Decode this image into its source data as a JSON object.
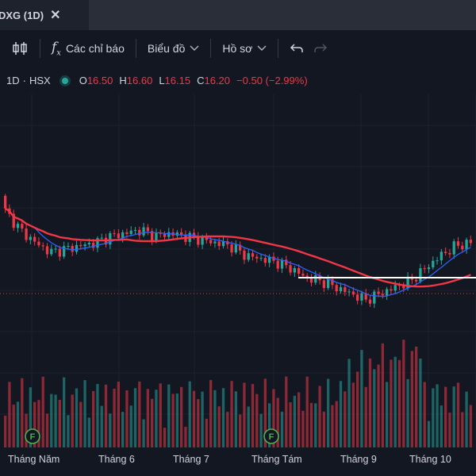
{
  "window": {
    "tab_title": "DXG (1D)",
    "close_glyph": "✕"
  },
  "toolbar": {
    "indicators_label": "Các chỉ báo",
    "chart_type_label": "Biểu đồ",
    "profile_label": "Hồ sơ",
    "fx_glyph": "f",
    "fx_sub": "x"
  },
  "legend": {
    "interval": "1D",
    "sep": "·",
    "exchange": "HSX",
    "o_label": "O",
    "o_value": "16.50",
    "h_label": "H",
    "h_value": "16.60",
    "l_label": "L",
    "l_value": "16.15",
    "c_label": "C",
    "c_value": "16.20",
    "change": "−0.50 (−2.99%)"
  },
  "colors": {
    "up": "#26a69a",
    "down": "#f23645",
    "ma_slow": "#f23645",
    "ma_fast": "#2962ff",
    "background": "#131722"
  },
  "x_axis": {
    "labels": [
      "Tháng Năm",
      "Tháng 6",
      "Tháng 7",
      "Tháng Tám",
      "Tháng 9",
      "Tháng 10"
    ]
  },
  "events": [
    {
      "label": "F",
      "month_index": 0
    },
    {
      "label": "F",
      "month_index": 3
    }
  ],
  "chart_data": {
    "type": "candlestick",
    "symbol": "DXG",
    "interval": "1D",
    "x_labels": [
      "Tháng Năm",
      "Tháng 6",
      "Tháng 7",
      "Tháng Tám",
      "Tháng 9",
      "Tháng 10"
    ],
    "close_series_shape": [
      19.0,
      18.4,
      18.0,
      17.7,
      17.8,
      17.9,
      18.0,
      18.2,
      18.3,
      18.4,
      18.2,
      18.3,
      18.2,
      18.1,
      18.0,
      17.9,
      17.6,
      17.5,
      17.4,
      17.2,
      16.9,
      16.8,
      16.6,
      16.4,
      16.2,
      16.4,
      16.6,
      16.8,
      17.2,
      17.6,
      17.9,
      18.0
    ],
    "last_price": 16.2,
    "horizontal_line_price": 16.9
  }
}
